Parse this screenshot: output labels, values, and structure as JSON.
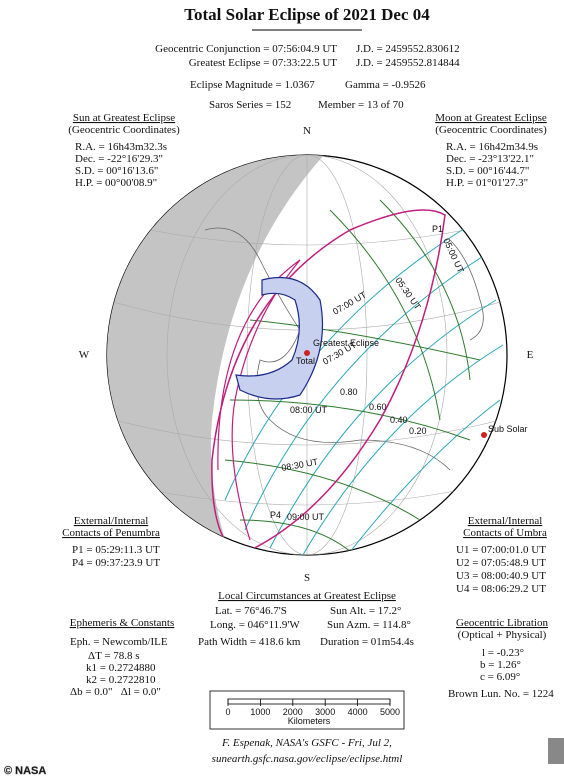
{
  "title": "Total Solar Eclipse of  2021 Dec 04",
  "header": {
    "rows": [
      [
        "Geocentric Conjunction = 07:56:04.9 UT",
        "J.D. = 2459552.830612"
      ],
      [
        "Greatest Eclipse = 07:33:22.5 UT",
        "J.D. = 2459552.814844"
      ],
      [
        "Eclipse Magnitude = 1.0367",
        "Gamma = -0.9526"
      ],
      [
        "Saros Series = 152",
        "Member = 13 of 70"
      ]
    ]
  },
  "sun": {
    "title": [
      "Sun at Greatest Eclipse",
      "(Geocentric Coordinates)"
    ],
    "rows": [
      "R.A. = 16h43m32.3s",
      "Dec. = -22°16'29.3\"",
      "S.D. = 00°16'13.6\"",
      "H.P. = 00°00'08.9\""
    ]
  },
  "moon": {
    "title": [
      "Moon at Greatest Eclipse",
      "(Geocentric Coordinates)"
    ],
    "rows": [
      "R.A. = 16h42m34.9s",
      "Dec. = -23°13'22.1\"",
      "S.D. = 00°16'44.7\"",
      "H.P. = 01°01'27.3\""
    ]
  },
  "globe": {
    "compass": {
      "n": "N",
      "s": "S",
      "w": "W",
      "e": "E"
    },
    "labels": [
      "P1",
      "05:00 UT",
      "05:30 UT",
      "07:00 UT",
      "07:30 UT",
      "Greatest Eclipse",
      "Total",
      "08:00 UT",
      "0.80",
      "0.60",
      "0.40",
      "0.20",
      "Sub Solar",
      "08:30 UT",
      "P4",
      "09:00 UT"
    ]
  },
  "penumbra": {
    "title": [
      "External/Internal",
      "Contacts of Penumbra"
    ],
    "rows": [
      "P1 = 05:29:11.3 UT",
      "P4 = 09:37:23.9 UT"
    ]
  },
  "umbra": {
    "title": [
      "External/Internal",
      "Contacts of Umbra"
    ],
    "rows": [
      "U1 = 07:00:01.0 UT",
      "U2 = 07:05:48.9 UT",
      "U3 = 08:00:40.9 UT",
      "U4 = 08:06:29.2 UT"
    ]
  },
  "local": {
    "title": "Local Circumstances at Greatest Eclipse",
    "rows": [
      [
        "Lat. = 76°46.7'S",
        "Sun Alt. = 17.2°"
      ],
      [
        "Long. = 046°11.9'W",
        "Sun Azm. = 114.8°"
      ],
      [
        "Path Width = 418.6 km",
        "Duration = 01m54.4s"
      ]
    ]
  },
  "ephemeris": {
    "title": "Ephemeris & Constants",
    "rows": [
      "Eph. = Newcomb/ILE",
      "ΔT = 78.8 s",
      "k1 = 0.2724880",
      "k2 = 0.2722810",
      "Δb = 0.0\"   Δl = 0.0\""
    ]
  },
  "libration": {
    "title": [
      "Geocentric Libration",
      "(Optical + Physical)"
    ],
    "rows": [
      "l = -0.23°",
      "b = 1.26°",
      "c = 6.09°"
    ],
    "brown": "Brown Lun. No. = 1224"
  },
  "scale": {
    "ticks": [
      0,
      1000,
      2000,
      3000,
      4000,
      5000
    ],
    "unit": "Kilometers"
  },
  "footer": [
    "F. Espenak, NASA's GSFC - Fri, Jul 2,",
    "sunearth.gsfc.nasa.gov/eclipse/eclipse.html"
  ],
  "credit": "© NASA"
}
